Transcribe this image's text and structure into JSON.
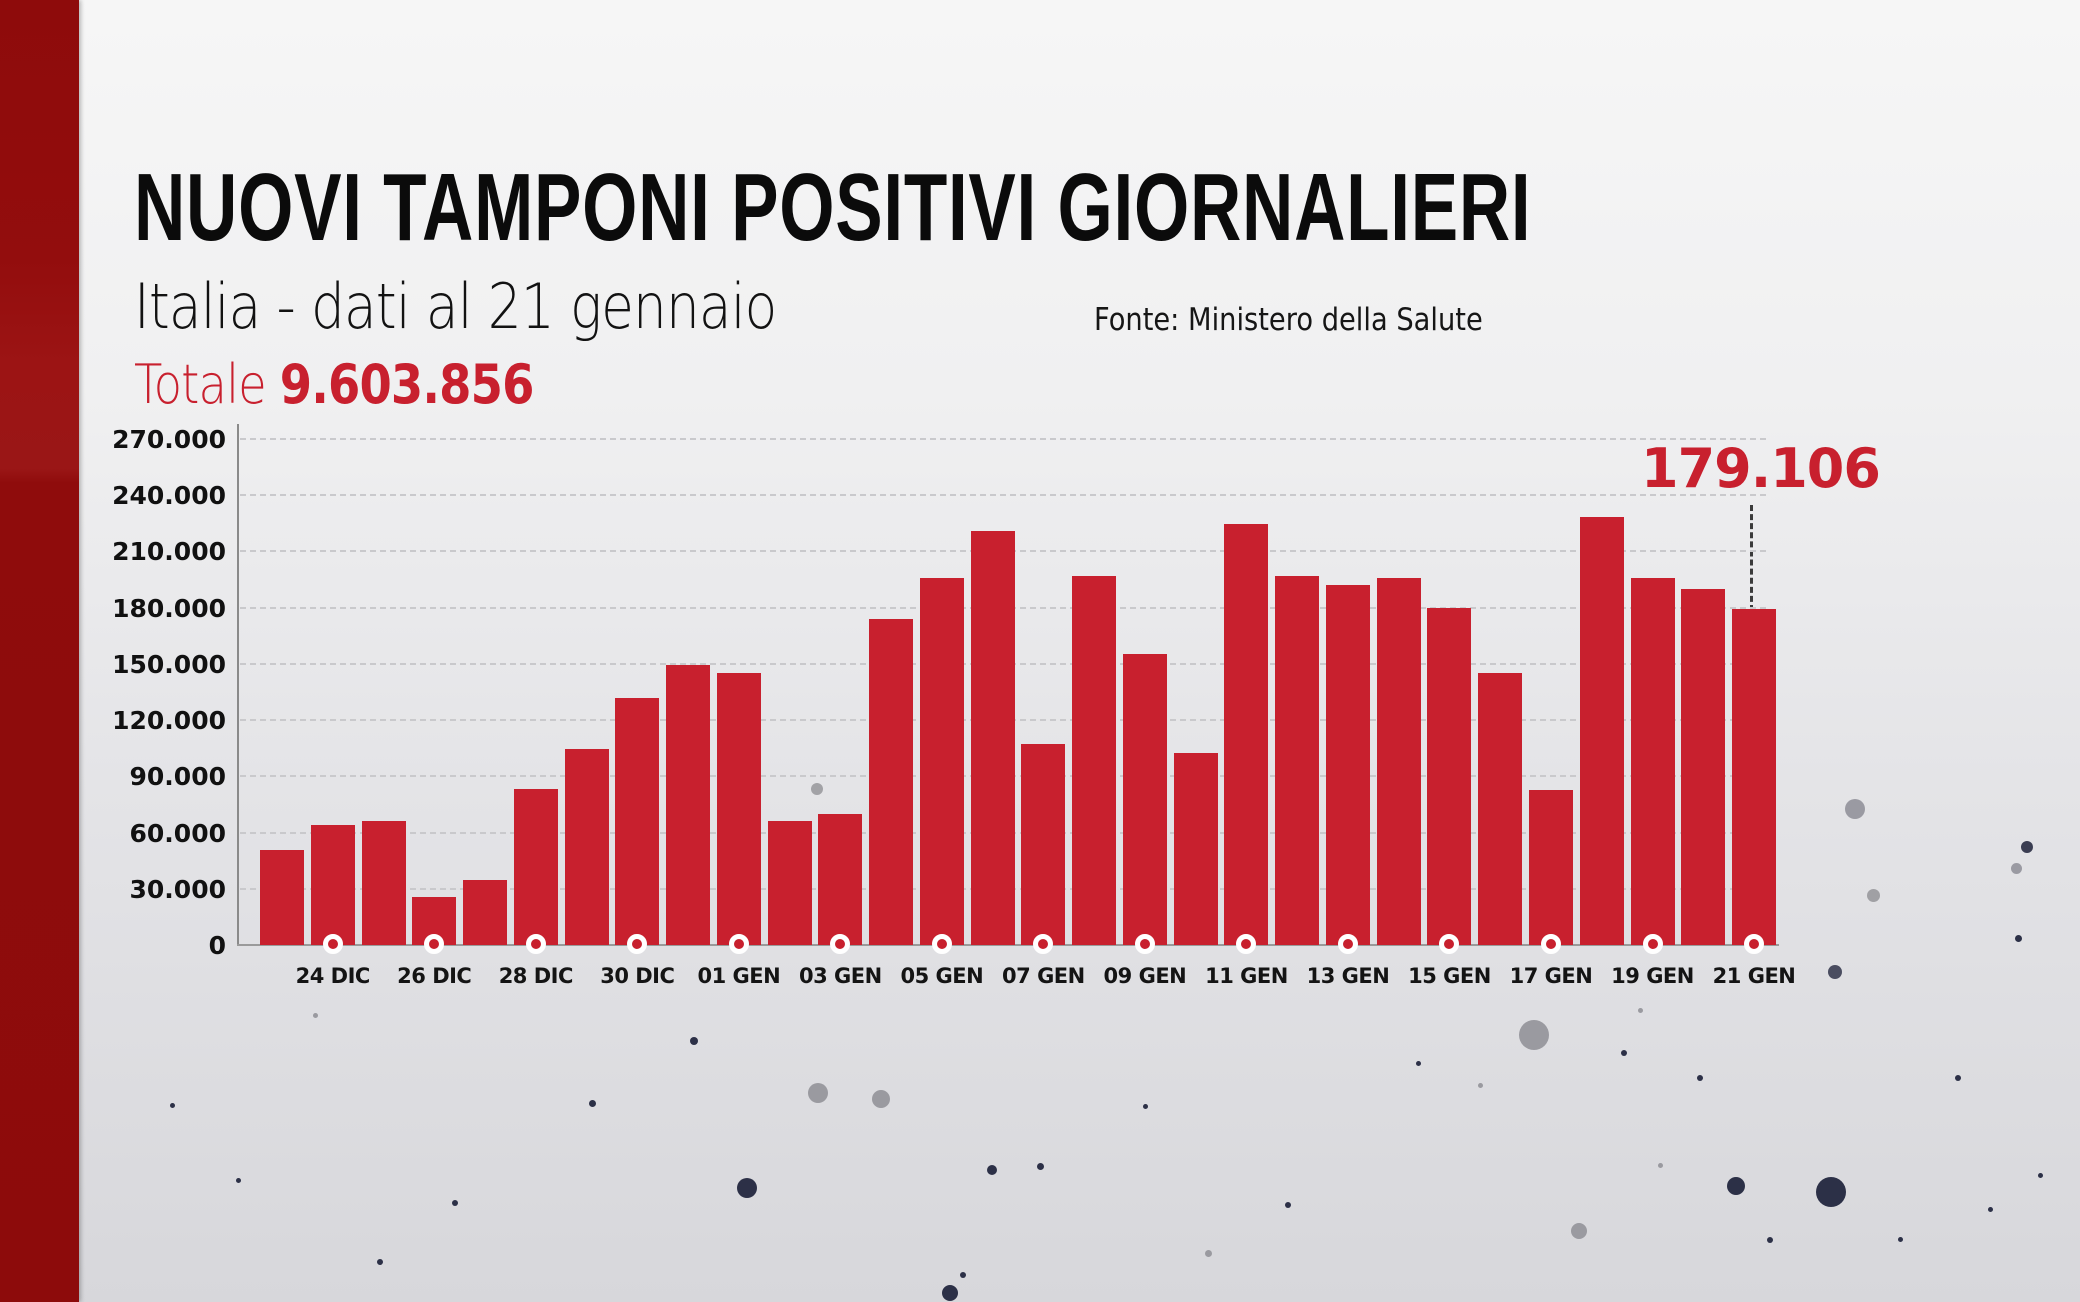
{
  "header": {
    "title": "NUOVI TAMPONI POSITIVI GIORNALIERI",
    "subtitle": "Italia - dati al 21 gennaio",
    "total_label": "Totale",
    "total_value": "9.603.856",
    "source": "Fonte: Ministero della Salute"
  },
  "colors": {
    "bar": "#c8202e",
    "accent_text": "#c8202e",
    "sidebar": "#8f0c0c",
    "title": "#0b0b0b"
  },
  "callout": {
    "label": "179.106",
    "target_date": "21 GEN"
  },
  "chart_data": {
    "type": "bar",
    "title": "NUOVI TAMPONI POSITIVI GIORNALIERI",
    "subtitle": "Italia - dati al 21 gennaio",
    "xlabel": "",
    "ylabel": "",
    "ylim": [
      0,
      270000
    ],
    "grid": true,
    "yticks": [
      0,
      30000,
      60000,
      90000,
      120000,
      150000,
      180000,
      210000,
      240000,
      270000
    ],
    "ytick_labels": [
      "0",
      "30.000",
      "60.000",
      "90.000",
      "120.000",
      "150.000",
      "180.000",
      "210.000",
      "240.000",
      "270.000"
    ],
    "categories": [
      "23 DIC",
      "24 DIC",
      "25 DIC",
      "26 DIC",
      "27 DIC",
      "28 DIC",
      "29 DIC",
      "30 DIC",
      "31 DIC",
      "01 GEN",
      "02 GEN",
      "03 GEN",
      "04 GEN",
      "05 GEN",
      "06 GEN",
      "07 GEN",
      "08 GEN",
      "09 GEN",
      "10 GEN",
      "11 GEN",
      "12 GEN",
      "13 GEN",
      "14 GEN",
      "15 GEN",
      "16 GEN",
      "17 GEN",
      "18 GEN",
      "19 GEN",
      "20 GEN",
      "21 GEN"
    ],
    "visible_xtick_labels": [
      "24 DIC",
      "26 DIC",
      "28 DIC",
      "30 DIC",
      "01 GEN",
      "03 GEN",
      "05 GEN",
      "07 GEN",
      "09 GEN",
      "11 GEN",
      "13 GEN",
      "15 GEN",
      "17 GEN",
      "19 GEN",
      "21 GEN"
    ],
    "values": [
      50700,
      64100,
      66200,
      25800,
      34700,
      83100,
      104700,
      131800,
      149600,
      145100,
      65900,
      70100,
      174100,
      196000,
      221100,
      107400,
      196700,
      155100,
      102700,
      224500,
      196700,
      192300,
      196000,
      180000,
      145300,
      82800,
      228300,
      195700,
      189800,
      179106
    ],
    "annotations": [
      {
        "x": "21 GEN",
        "text": "179.106"
      }
    ],
    "total": "9.603.856",
    "source": "Fonte: Ministero della Salute"
  }
}
